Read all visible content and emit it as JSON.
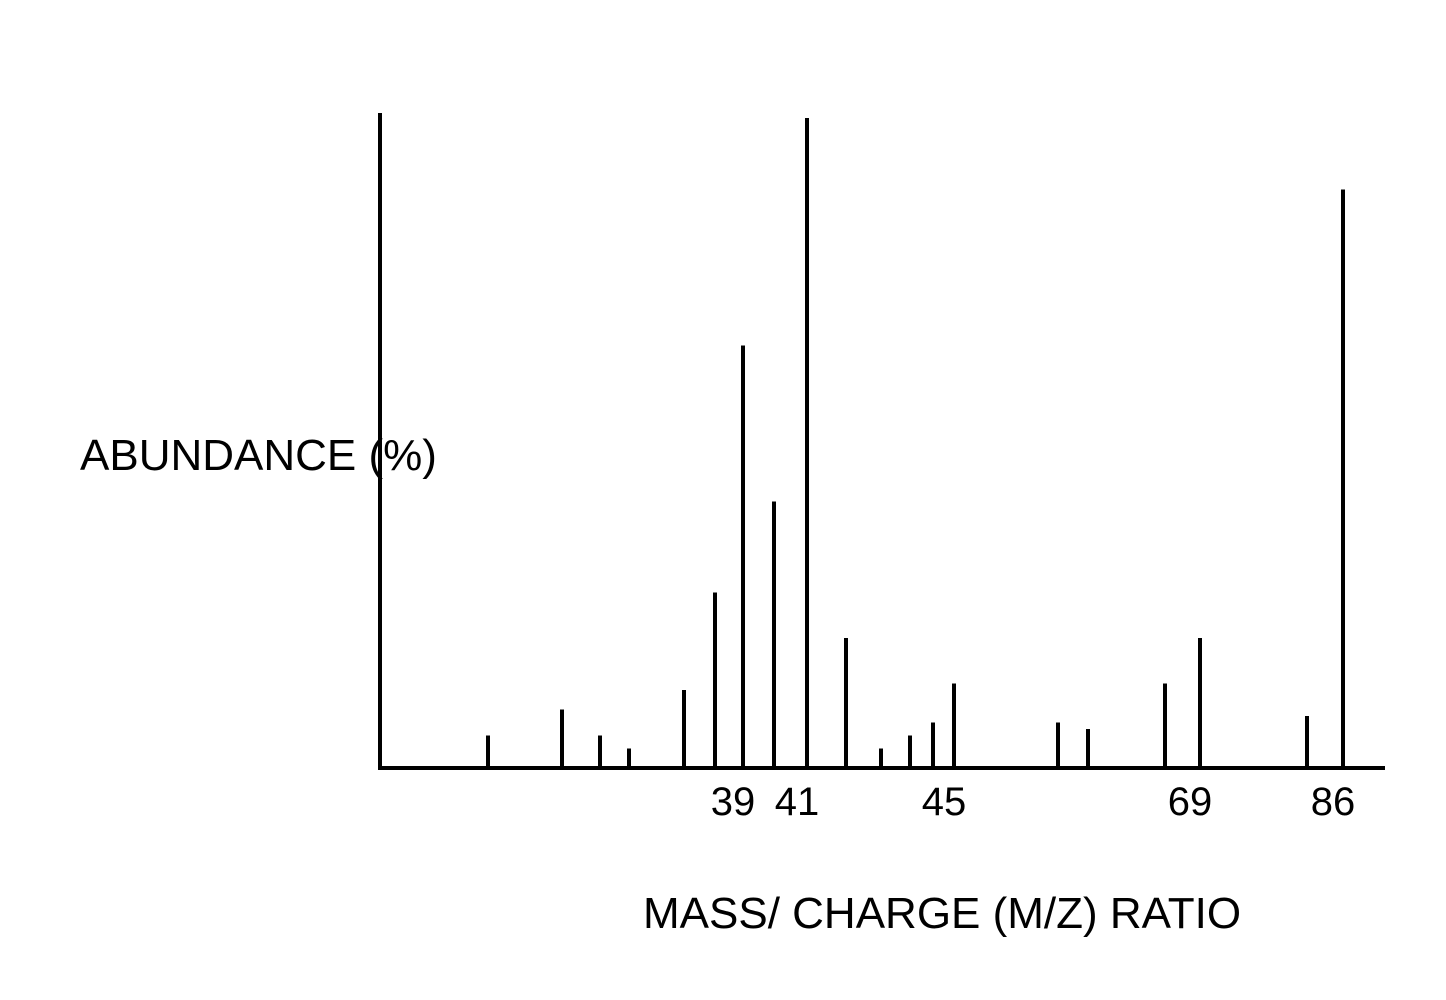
{
  "chart_data": {
    "type": "bar",
    "xlabel": "MASS/ CHARGE  (M/Z)  RATIO",
    "ylabel": "ABUNDANCE (%)",
    "ylim": [
      0,
      100
    ],
    "grid": false,
    "legend": "none",
    "tick_labels": [
      {
        "value": 39,
        "label": "39"
      },
      {
        "value": 41,
        "label": "41"
      },
      {
        "value": 45,
        "label": "45"
      },
      {
        "value": 69,
        "label": "69"
      },
      {
        "value": 86,
        "label": "86"
      }
    ],
    "peaks": [
      {
        "x": 29,
        "y": 5
      },
      {
        "x": 31,
        "y": 9
      },
      {
        "x": 32,
        "y": 5
      },
      {
        "x": 33,
        "y": 3
      },
      {
        "x": 37,
        "y": 12
      },
      {
        "x": 38,
        "y": 27
      },
      {
        "x": 39,
        "y": 65
      },
      {
        "x": 40,
        "y": 41
      },
      {
        "x": 41,
        "y": 100
      },
      {
        "x": 42,
        "y": 20
      },
      {
        "x": 43,
        "y": 3
      },
      {
        "x": 44,
        "y": 5
      },
      {
        "x": 44.7,
        "y": 7
      },
      {
        "x": 45,
        "y": 13
      },
      {
        "x": 55,
        "y": 7
      },
      {
        "x": 57,
        "y": 6
      },
      {
        "x": 67,
        "y": 13
      },
      {
        "x": 69,
        "y": 20
      },
      {
        "x": 84,
        "y": 8
      },
      {
        "x": 86,
        "y": 89
      }
    ]
  }
}
